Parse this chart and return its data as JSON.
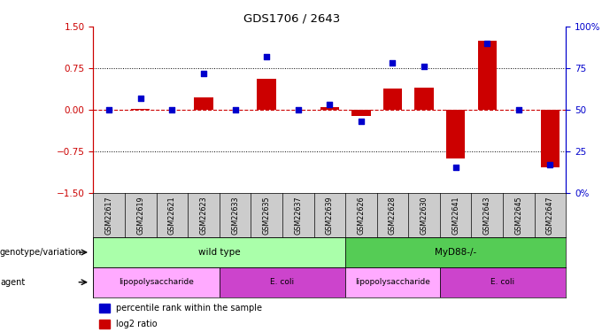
{
  "title": "GDS1706 / 2643",
  "samples": [
    "GSM22617",
    "GSM22619",
    "GSM22621",
    "GSM22623",
    "GSM22633",
    "GSM22635",
    "GSM22637",
    "GSM22639",
    "GSM22626",
    "GSM22628",
    "GSM22630",
    "GSM22641",
    "GSM22643",
    "GSM22645",
    "GSM22647"
  ],
  "log2_ratio": [
    0.0,
    0.02,
    0.0,
    0.22,
    0.0,
    0.55,
    0.0,
    0.05,
    -0.12,
    0.38,
    0.4,
    -0.88,
    1.25,
    0.0,
    -1.05
  ],
  "percentile": [
    50,
    57,
    50,
    72,
    50,
    82,
    50,
    53,
    43,
    78,
    76,
    15,
    90,
    50,
    17
  ],
  "bar_color": "#cc0000",
  "dot_color": "#0000cc",
  "ylim_left": [
    -1.5,
    1.5
  ],
  "ylim_right": [
    0,
    100
  ],
  "yticks_left": [
    -1.5,
    -0.75,
    0.0,
    0.75,
    1.5
  ],
  "yticks_right": [
    0,
    25,
    50,
    75,
    100
  ],
  "yticklabels_right": [
    "0%",
    "25",
    "50",
    "75",
    "100%"
  ],
  "dotted_lines": [
    -0.75,
    0.75
  ],
  "genotype_groups": [
    {
      "label": "wild type",
      "start": 0,
      "end": 7,
      "color": "#aaffaa"
    },
    {
      "label": "MyD88-/-",
      "start": 8,
      "end": 14,
      "color": "#55cc55"
    }
  ],
  "agent_groups": [
    {
      "label": "lipopolysaccharide",
      "start": 0,
      "end": 3,
      "color": "#ffaaff"
    },
    {
      "label": "E. coli",
      "start": 4,
      "end": 7,
      "color": "#cc44cc"
    },
    {
      "label": "lipopolysaccharide",
      "start": 8,
      "end": 10,
      "color": "#ffaaff"
    },
    {
      "label": "E. coli",
      "start": 11,
      "end": 14,
      "color": "#cc44cc"
    }
  ],
  "legend_items": [
    {
      "label": "log2 ratio",
      "color": "#cc0000"
    },
    {
      "label": "percentile rank within the sample",
      "color": "#0000cc"
    }
  ],
  "left_labels": [
    "genotype/variation",
    "agent"
  ],
  "bar_width": 0.6,
  "axis_color_left": "#cc0000",
  "axis_color_right": "#0000cc",
  "header_bg": "#cccccc",
  "genotype_light_color": "#aaffaa",
  "genotype_dark_color": "#55cc55",
  "agent_light_color": "#ffaaff",
  "agent_dark_color": "#cc44cc"
}
